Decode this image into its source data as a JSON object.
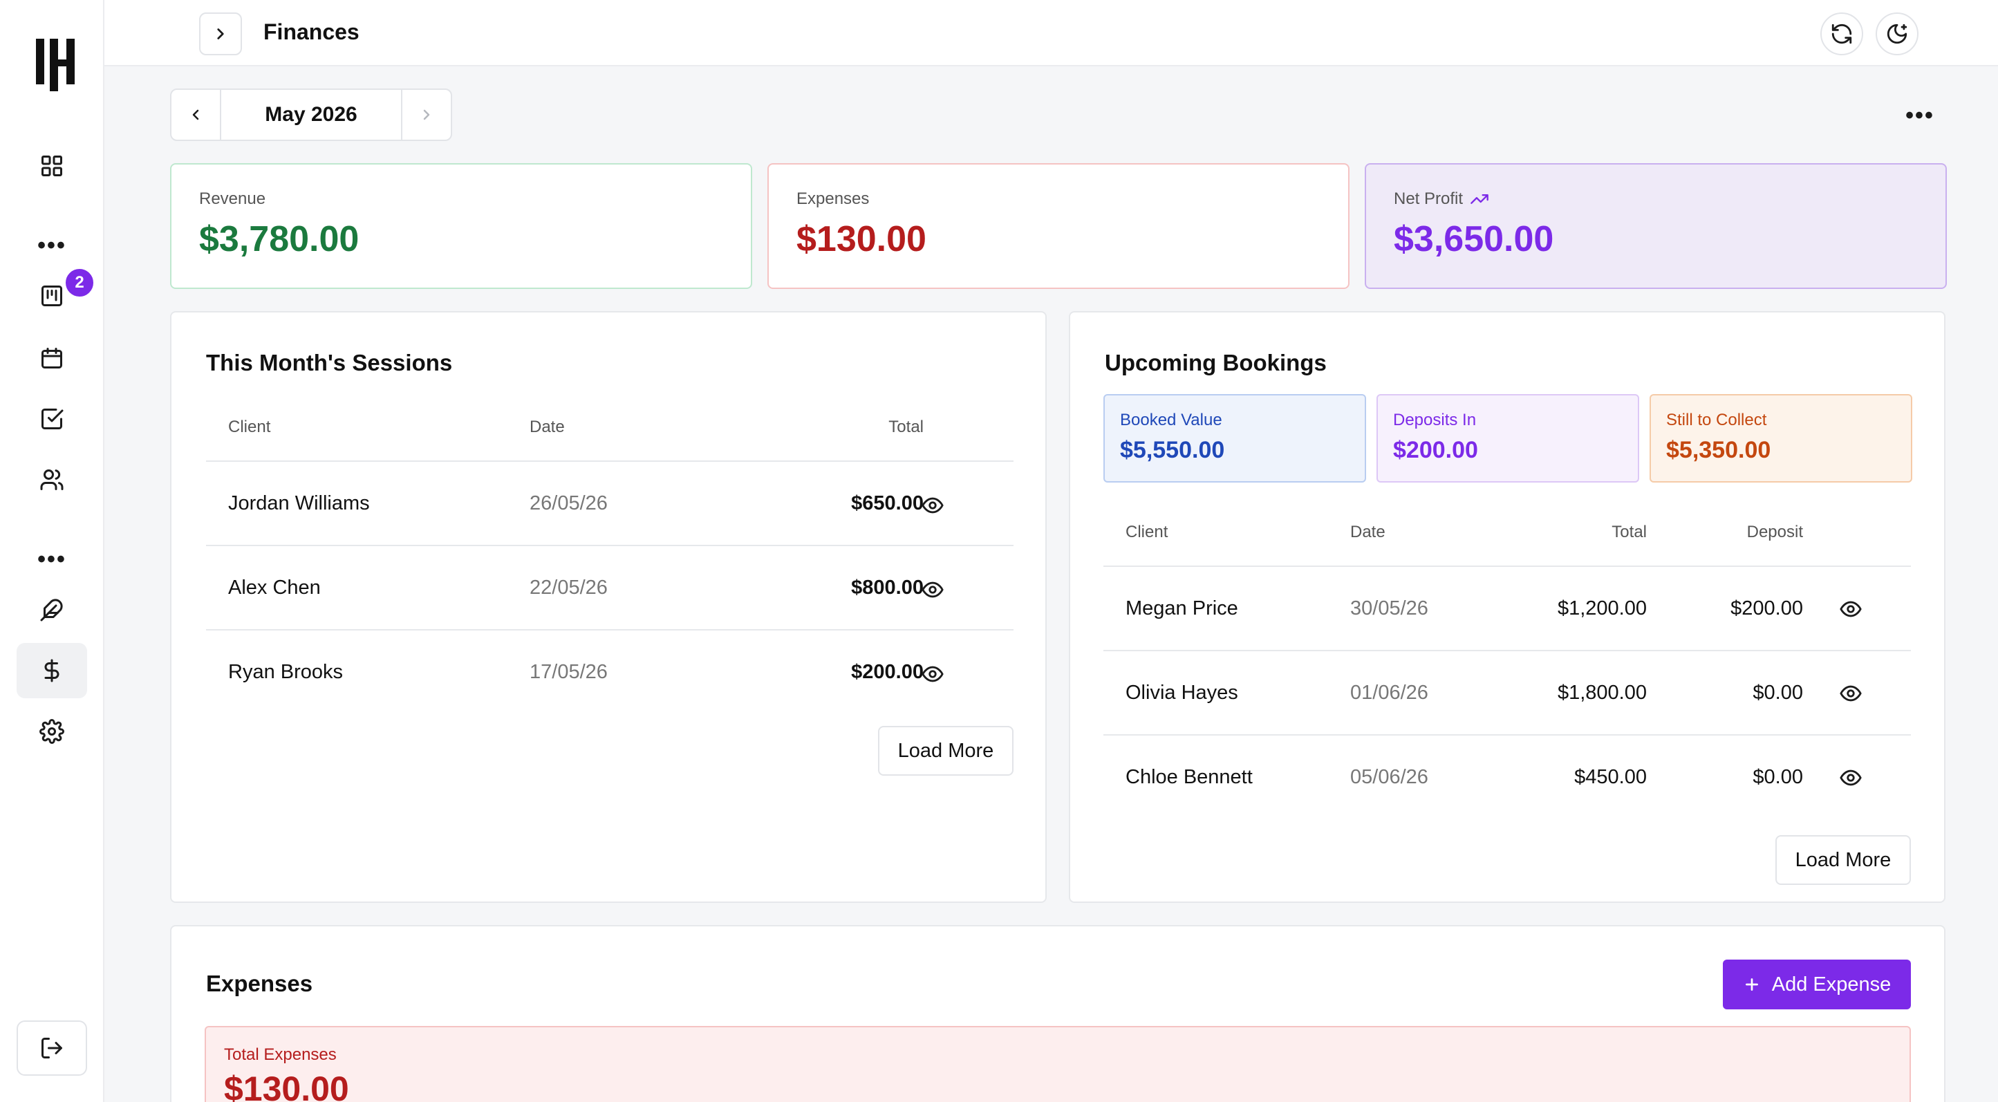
{
  "header": {
    "title": "Finances"
  },
  "sidebar": {
    "badge_count": "2",
    "icons": [
      "dashboard-icon",
      "more-icon",
      "kanban-icon",
      "calendar-icon",
      "tasks-icon",
      "users-icon",
      "more-icon",
      "feather-icon",
      "dollar-icon",
      "settings-icon",
      "logout-icon"
    ]
  },
  "month_picker": {
    "label": "May 2026"
  },
  "summary": {
    "revenue_label": "Revenue",
    "revenue_value": "$3,780.00",
    "expenses_label": "Expenses",
    "expenses_value": "$130.00",
    "net_label": "Net Profit",
    "net_value": "$3,650.00"
  },
  "sessions": {
    "title": "This Month's Sessions",
    "columns": [
      "Client",
      "Date",
      "Total"
    ],
    "rows": [
      {
        "client": "Jordan Williams",
        "date": "26/05/26",
        "total": "$650.00"
      },
      {
        "client": "Alex Chen",
        "date": "22/05/26",
        "total": "$800.00"
      },
      {
        "client": "Ryan Brooks",
        "date": "17/05/26",
        "total": "$200.00"
      }
    ],
    "load_more": "Load More"
  },
  "bookings": {
    "title": "Upcoming Bookings",
    "booked_label": "Booked Value",
    "booked_value": "$5,550.00",
    "deposits_label": "Deposits In",
    "deposits_value": "$200.00",
    "collect_label": "Still to Collect",
    "collect_value": "$5,350.00",
    "columns": [
      "Client",
      "Date",
      "Total",
      "Deposit"
    ],
    "rows": [
      {
        "client": "Megan Price",
        "date": "30/05/26",
        "total": "$1,200.00",
        "deposit": "$200.00"
      },
      {
        "client": "Olivia Hayes",
        "date": "01/06/26",
        "total": "$1,800.00",
        "deposit": "$0.00"
      },
      {
        "client": "Chloe Bennett",
        "date": "05/06/26",
        "total": "$450.00",
        "deposit": "$0.00"
      }
    ],
    "load_more": "Load More"
  },
  "expenses": {
    "title": "Expenses",
    "add_label": "Add Expense",
    "total_label": "Total Expenses",
    "total_value": "$130.00"
  },
  "colors": {
    "accent": "#7c2ae8",
    "revenue": "#1b7a3e",
    "expense": "#b51d1d",
    "booked": "#1f48b8",
    "collect": "#c4470f"
  }
}
